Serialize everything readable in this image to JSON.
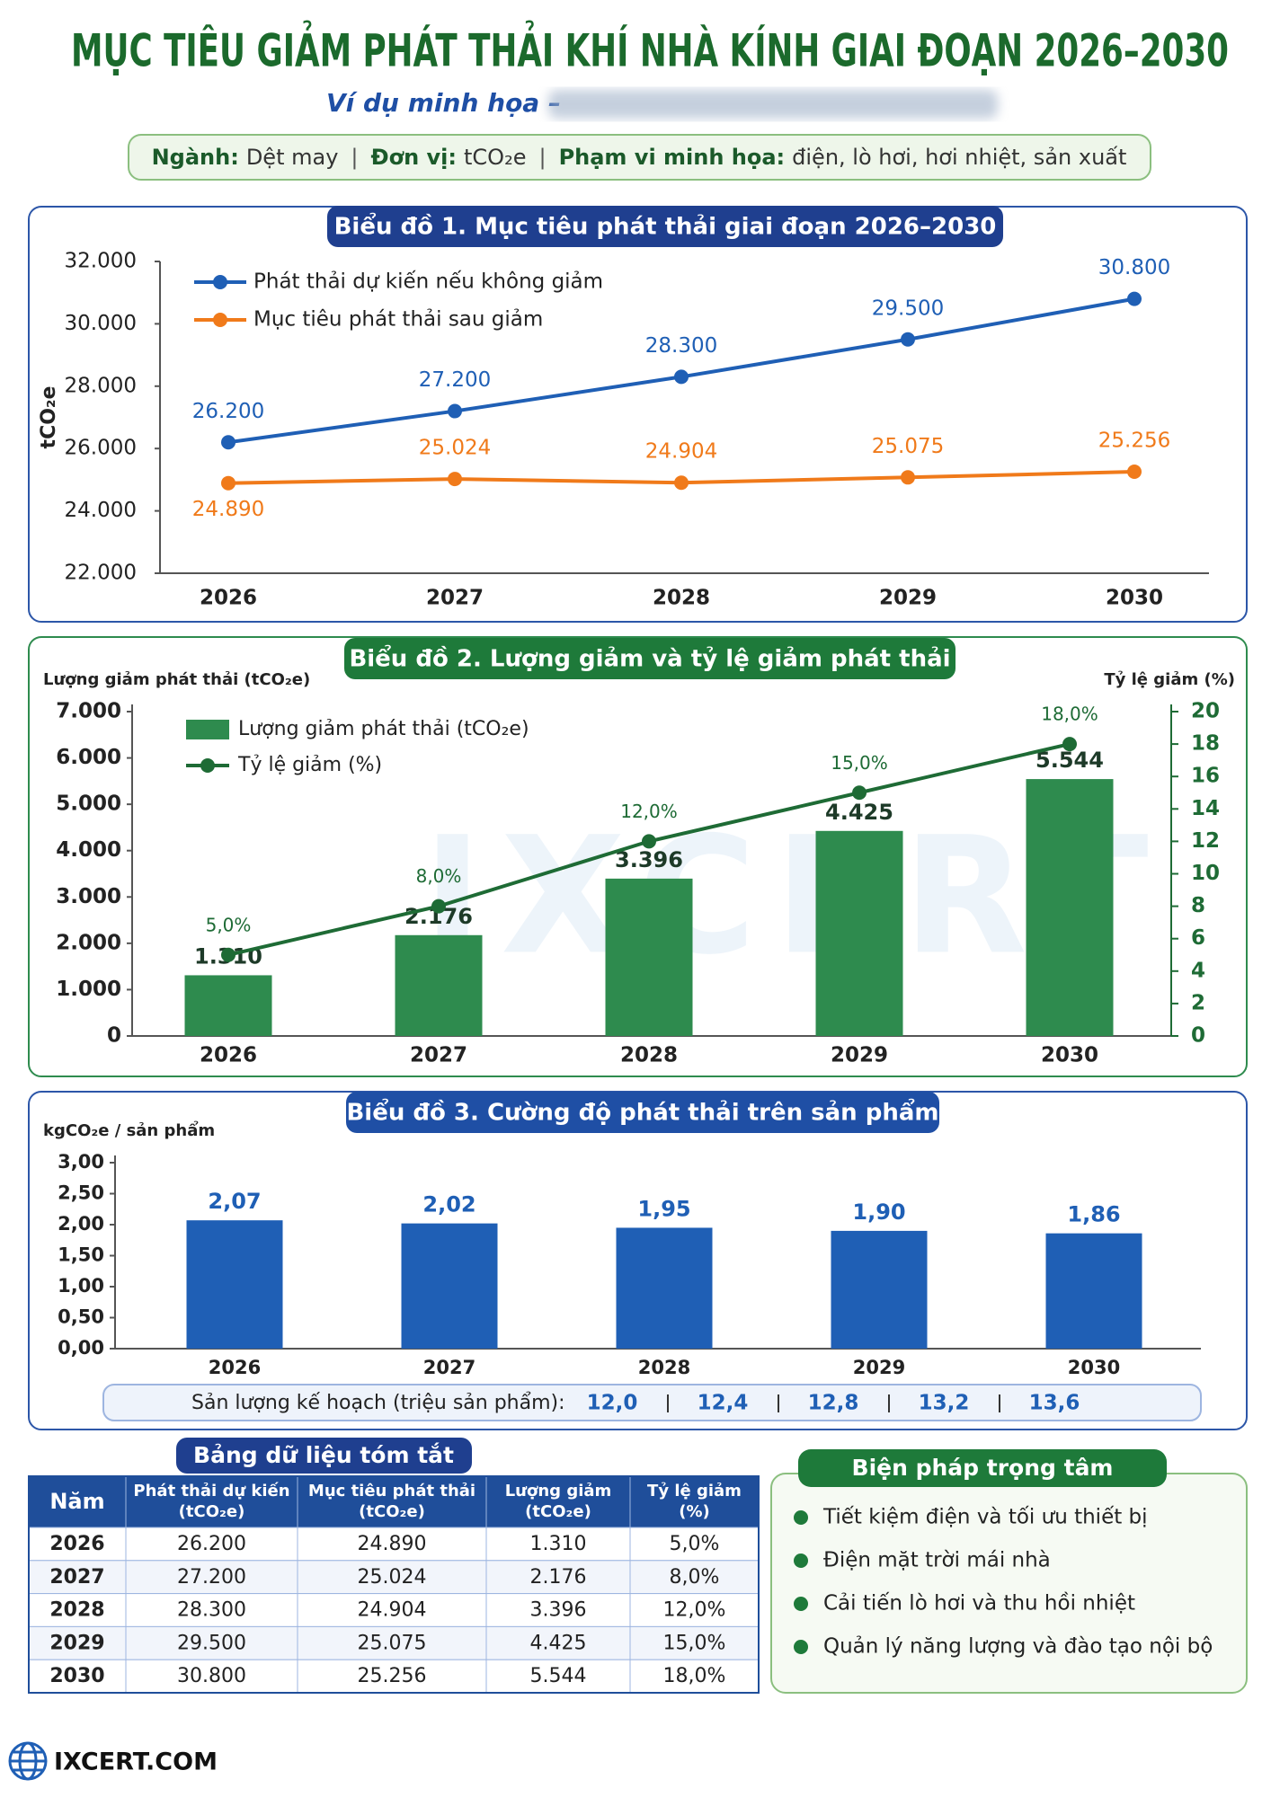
{
  "header": {
    "title": "MỤC TIÊU GIẢM PHÁT THẢI KHÍ NHÀ KÍNH GIAI ĐOẠN 2026–2030",
    "subtitle": "Ví dụ minh họa –",
    "info": [
      {
        "label": "Ngành:",
        "value": "Dệt may"
      },
      {
        "label": "Đơn vị:",
        "value": "tCO₂e"
      },
      {
        "label": "Phạm vi minh họa:",
        "value": "điện, lò hơi, hơi nhiệt, sản xuất"
      }
    ]
  },
  "watermark": "IXCERT",
  "chart_data": [
    {
      "type": "line",
      "title": "Biểu đồ 1. Mục tiêu phát thải giai đoạn 2026–2030",
      "ylabel": "tCO₂e",
      "categories": [
        "2026",
        "2027",
        "2028",
        "2029",
        "2030"
      ],
      "series": [
        {
          "name": "Phát thải dự kiến nếu không giảm",
          "color": "#1f5fb5",
          "values": [
            26200,
            27200,
            28300,
            29500,
            30800
          ],
          "value_labels": [
            "26.200",
            "27.200",
            "28.300",
            "29.500",
            "30.800"
          ]
        },
        {
          "name": "Mục tiêu phát thải sau giảm",
          "color": "#f07a1a",
          "values": [
            24890,
            25024,
            24904,
            25075,
            25256
          ],
          "value_labels": [
            "24.890",
            "25.024",
            "24.904",
            "25.075",
            "25.256"
          ]
        }
      ],
      "ylim": [
        22000,
        32000
      ],
      "yticks": [
        {
          "value": 22000,
          "label": "22.000"
        },
        {
          "value": 24000,
          "label": "24.000"
        },
        {
          "value": 26000,
          "label": "26.000"
        },
        {
          "value": 28000,
          "label": "28.000"
        },
        {
          "value": 30000,
          "label": "30.000"
        },
        {
          "value": 32000,
          "label": "32.000"
        }
      ],
      "grid": false,
      "legend": "upper left"
    },
    {
      "type": "bar",
      "title": "Biểu đồ 2. Lượng giảm và tỷ lệ giảm phát thải",
      "ylabel": "Lượng giảm phát thải (tCO₂e)",
      "y2label": "Tỷ lệ giảm (%)",
      "categories": [
        "2026",
        "2027",
        "2028",
        "2029",
        "2030"
      ],
      "series": [
        {
          "name": "Lượng giảm phát thải (tCO₂e)",
          "color": "#2e8b4e",
          "values": [
            1310,
            2176,
            3396,
            4425,
            5544
          ],
          "value_labels": [
            "1.310",
            "2.176",
            "3.396",
            "4.425",
            "5.544"
          ]
        },
        {
          "name": "Tỷ lệ giảm (%)",
          "type": "line",
          "axis": "y2",
          "color": "#1e6b35",
          "values": [
            5,
            8,
            12,
            15,
            18
          ],
          "value_labels": [
            "5,0%",
            "8,0%",
            "12,0%",
            "15,0%",
            "18,0%"
          ]
        }
      ],
      "ylim": [
        0,
        7000
      ],
      "yticks": [
        0,
        {
          "value": 1000,
          "label": "1.000"
        },
        {
          "value": 2000,
          "label": "2.000"
        },
        {
          "value": 3000,
          "label": "3.000"
        },
        {
          "value": 4000,
          "label": "4.000"
        },
        {
          "value": 5000,
          "label": "5.000"
        },
        {
          "value": 6000,
          "label": "6.000"
        },
        {
          "value": 7000,
          "label": "7.000"
        }
      ],
      "y2lim": [
        0,
        20
      ],
      "y2ticks": [
        0,
        2,
        4,
        6,
        8,
        10,
        12,
        14,
        16,
        18,
        20
      ],
      "grid": false,
      "legend": "upper left"
    },
    {
      "type": "bar",
      "title": "Biểu đồ 3. Cường độ phát thải trên sản phẩm",
      "ylabel": "kgCO₂e / sản phẩm",
      "categories": [
        "2026",
        "2027",
        "2028",
        "2029",
        "2030"
      ],
      "color": "#1f5fb5",
      "values": [
        2.07,
        2.02,
        1.95,
        1.9,
        1.86
      ],
      "value_labels": [
        "2,07",
        "2,02",
        "1,95",
        "1,90",
        "1,86"
      ],
      "ylim": [
        0,
        3
      ],
      "yticks": [
        {
          "value": 0,
          "label": "0,00"
        },
        {
          "value": 0.5,
          "label": "0,50"
        },
        {
          "value": 1,
          "label": "1,00"
        },
        {
          "value": 1.5,
          "label": "1,50"
        },
        {
          "value": 2,
          "label": "2,00"
        },
        {
          "value": 2.5,
          "label": "2,50"
        },
        {
          "value": 3,
          "label": "3,00"
        }
      ],
      "grid": false,
      "production": {
        "label": "Sản lượng kế hoạch (triệu sản phẩm):",
        "values": [
          "12,0",
          "12,4",
          "12,8",
          "13,2",
          "13,6"
        ]
      }
    }
  ],
  "table": {
    "title": "Bảng dữ liệu tóm tắt",
    "headers": [
      [
        "Năm"
      ],
      [
        "Phát thải dự kiến",
        "(tCO₂e)"
      ],
      [
        "Mục tiêu phát thải",
        "(tCO₂e)"
      ],
      [
        "Lượng giảm",
        "(tCO₂e)"
      ],
      [
        "Tỷ lệ giảm",
        "(%)"
      ]
    ],
    "rows": [
      [
        "2026",
        "26.200",
        "24.890",
        "1.310",
        "5,0%"
      ],
      [
        "2027",
        "27.200",
        "25.024",
        "2.176",
        "8,0%"
      ],
      [
        "2028",
        "28.300",
        "24.904",
        "3.396",
        "12,0%"
      ],
      [
        "2029",
        "29.500",
        "25.075",
        "4.425",
        "15,0%"
      ],
      [
        "2030",
        "30.800",
        "25.256",
        "5.544",
        "18,0%"
      ]
    ]
  },
  "measures": {
    "title": "Biện pháp trọng tâm",
    "items": [
      "Tiết kiệm điện và tối ưu thiết bị",
      "Điện mặt trời mái nhà",
      "Cải tiến lò hơi và thu hồi nhiệt",
      "Quản lý năng lượng và đào tạo nội bộ"
    ]
  },
  "footer": "IXCERT.COM"
}
